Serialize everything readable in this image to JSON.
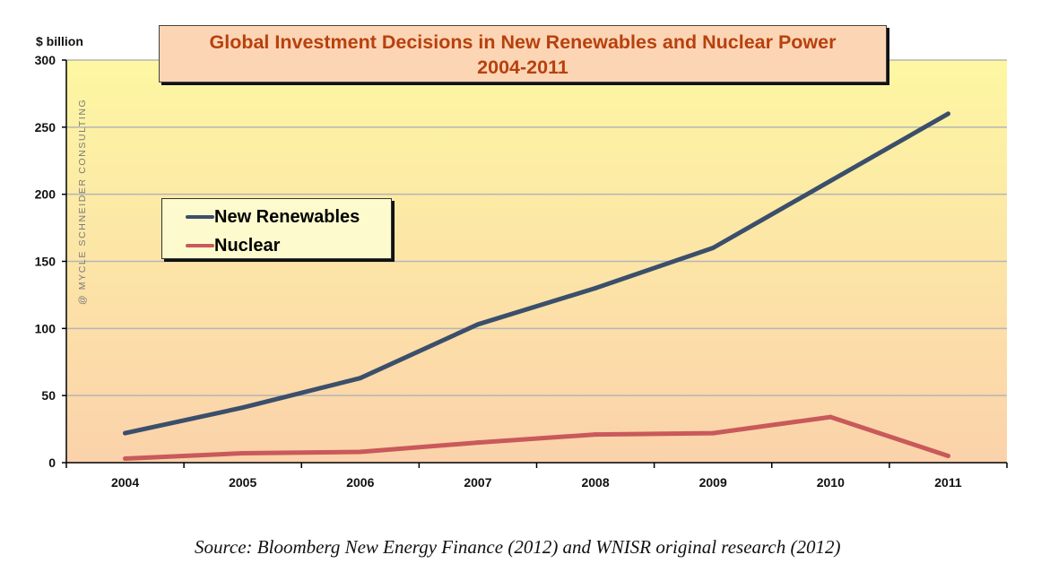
{
  "colors": {
    "plot_top": "#fdf7a2",
    "plot_bottom": "#fbd2ab",
    "grid": "#b5b5b5",
    "axis": "#000000",
    "title_text": "#b7410e",
    "title_bg": "#fcd5b5",
    "legend_bg": "#fdfacd"
  },
  "watermark": "@ MYCLE SCHNEIDER CONSULTING",
  "source": "Source: Bloomberg New Energy Finance (2012) and WNISR original research (2012)",
  "chart_data": {
    "type": "line",
    "title": "Global Investment Decisions in New Renewables and Nuclear Power",
    "subtitle": "2004-2011",
    "ylabel": "$ billion",
    "xlabel": "",
    "x": [
      "2004",
      "2005",
      "2006",
      "2007",
      "2008",
      "2009",
      "2010",
      "2011"
    ],
    "ylim": [
      0,
      300
    ],
    "yticks": [
      0,
      50,
      100,
      150,
      200,
      250,
      300
    ],
    "grid": true,
    "legend_position": "upper-left",
    "series": [
      {
        "name": "New Renewables",
        "color": "#3b4f6b",
        "values": [
          22,
          41,
          63,
          103,
          130,
          160,
          210,
          260
        ]
      },
      {
        "name": "Nuclear",
        "color": "#c9595a",
        "values": [
          3,
          7,
          8,
          15,
          21,
          22,
          34,
          5
        ]
      }
    ]
  }
}
